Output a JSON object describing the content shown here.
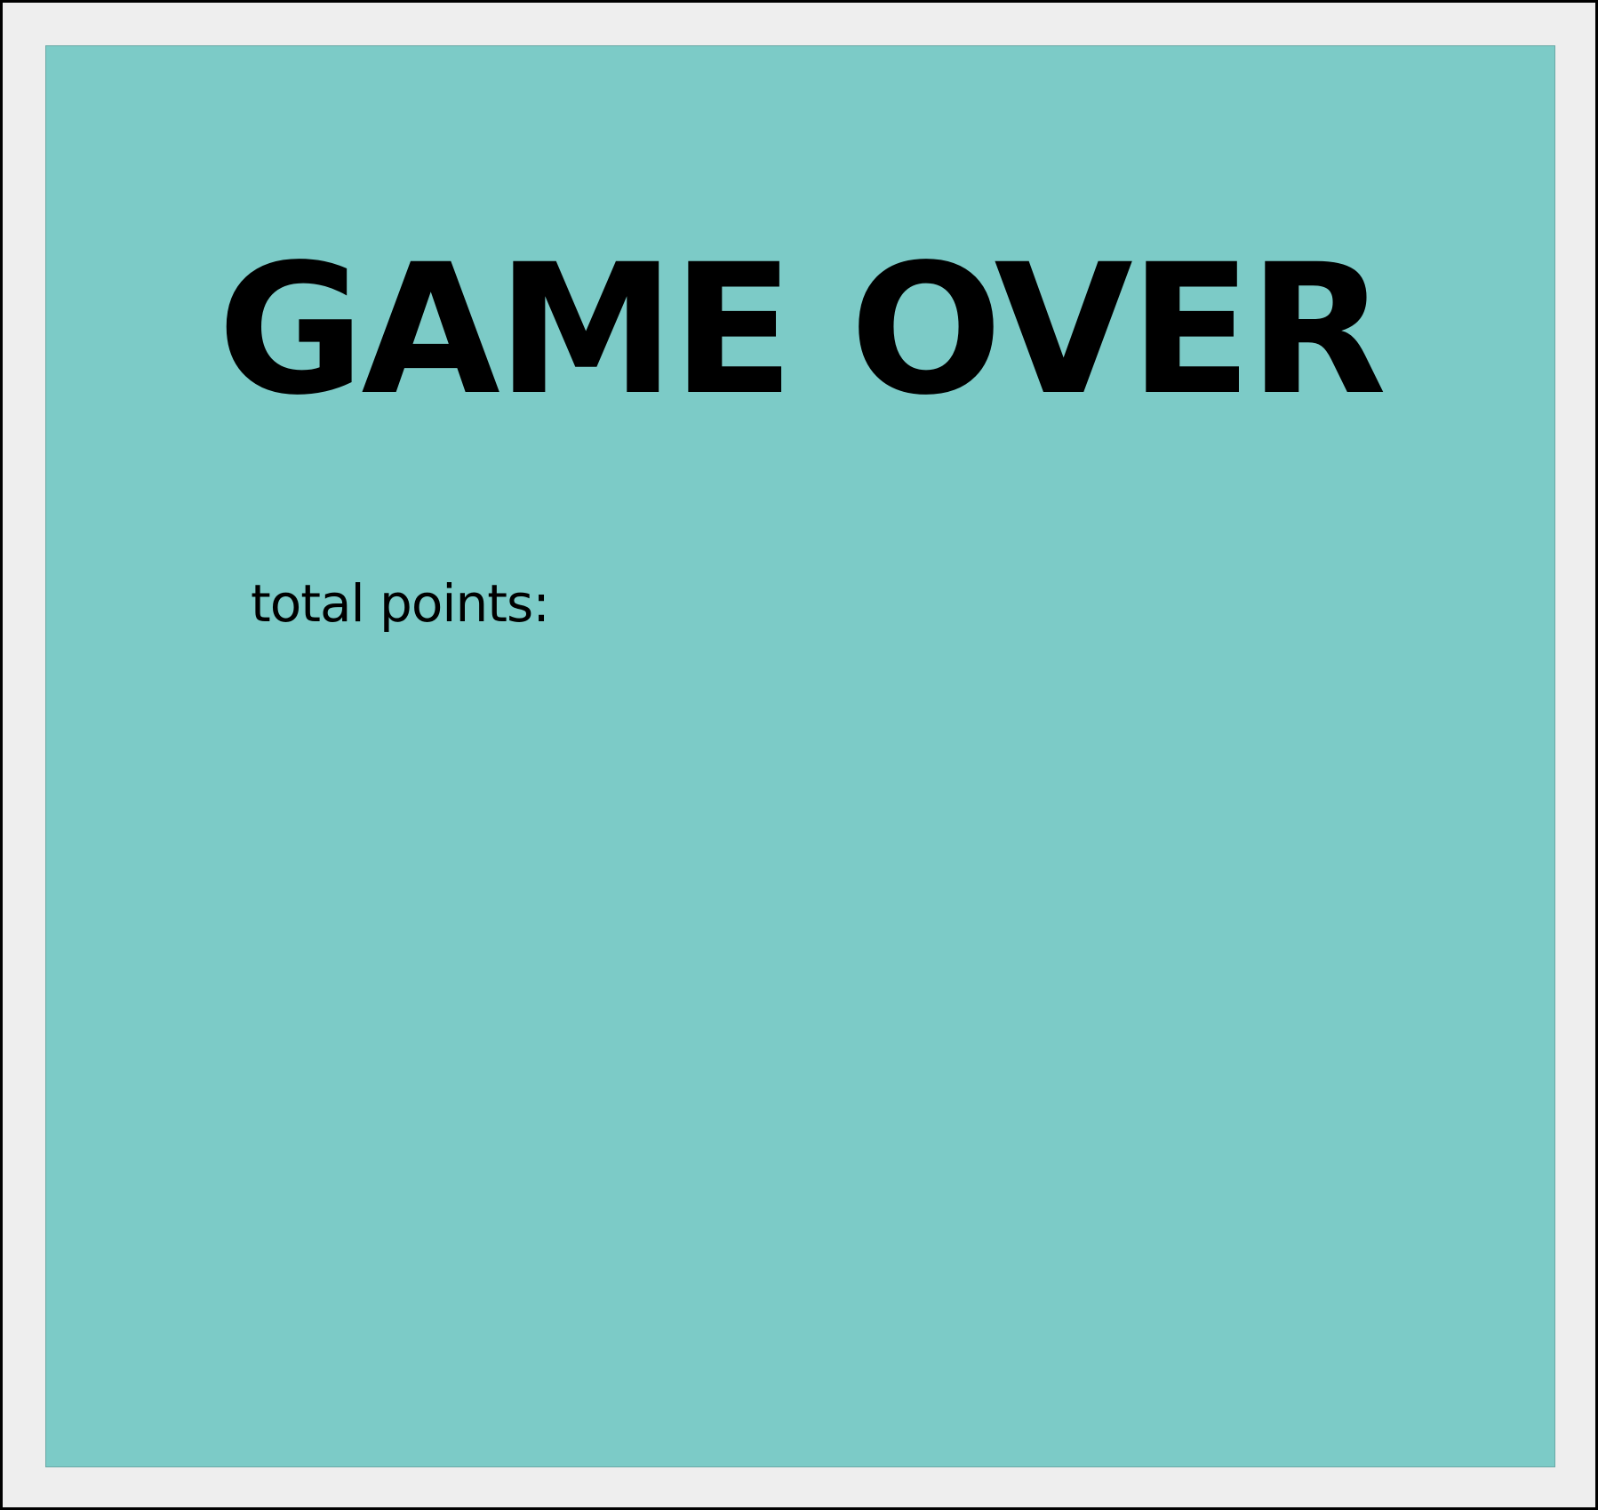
{
  "colors": {
    "frame_border": "#000000",
    "frame_background": "#eeeeee",
    "panel_background": "#7ccbc7",
    "text": "#000000"
  },
  "game_over_screen": {
    "title": "GAME OVER",
    "total_points_label": "total points:"
  }
}
